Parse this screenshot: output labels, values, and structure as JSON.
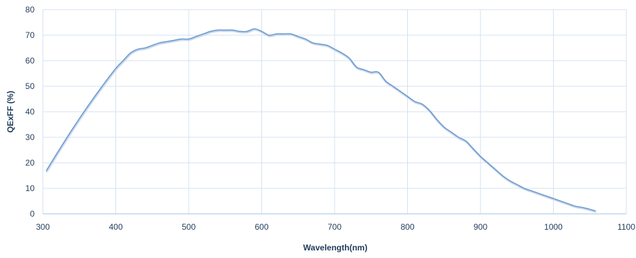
{
  "chart_data": {
    "type": "line",
    "title": "",
    "xlabel": "Wavelength(nm)",
    "ylabel": "QExFF (%)",
    "xlim": [
      300,
      1100
    ],
    "ylim": [
      0,
      80
    ],
    "x_ticks": [
      300,
      400,
      500,
      600,
      700,
      800,
      900,
      1000,
      1100
    ],
    "y_ticks": [
      0,
      10,
      20,
      30,
      40,
      50,
      60,
      70,
      80
    ],
    "x_tick_labels": [
      "300",
      "400",
      "500",
      "600",
      "700",
      "800",
      "900",
      "1000",
      "1100"
    ],
    "y_tick_labels": [
      "0",
      "10",
      "20",
      "30",
      "40",
      "50",
      "60",
      "70",
      "80"
    ],
    "grid": true,
    "legend": "none",
    "colors": {
      "line": "#6f9bd1",
      "grid": "#d4e2f1",
      "axis": "#b8cde4",
      "text": "#1f3b5a"
    },
    "series": [
      {
        "x": [
          305,
          320,
          340,
          360,
          380,
          400,
          410,
          420,
          430,
          440,
          450,
          460,
          470,
          480,
          490,
          500,
          510,
          520,
          530,
          540,
          550,
          560,
          570,
          580,
          590,
          600,
          610,
          620,
          630,
          640,
          650,
          660,
          670,
          680,
          690,
          700,
          710,
          720,
          730,
          740,
          750,
          760,
          770,
          780,
          790,
          800,
          810,
          820,
          830,
          840,
          850,
          860,
          870,
          880,
          890,
          900,
          910,
          920,
          930,
          940,
          950,
          960,
          970,
          980,
          990,
          1000,
          1010,
          1020,
          1030,
          1040,
          1050,
          1057
        ],
        "y": [
          17,
          24,
          33,
          41.5,
          49.5,
          57,
          60,
          63,
          64.5,
          65,
          66,
          67,
          67.5,
          68,
          68.5,
          68.5,
          69.5,
          70.5,
          71.5,
          72,
          72,
          72,
          71.5,
          71.5,
          72.5,
          71.5,
          70,
          70.5,
          70.5,
          70.5,
          69.5,
          68.5,
          67,
          66.5,
          66,
          64.5,
          63,
          61,
          57.5,
          56.5,
          55.5,
          55.5,
          52,
          50,
          48,
          46,
          44,
          43,
          40.5,
          37,
          34,
          32,
          30,
          28.5,
          25.5,
          22.5,
          20,
          17.5,
          15,
          13,
          11.5,
          10,
          9,
          8,
          7,
          6,
          5,
          4,
          3,
          2.5,
          1.8,
          1.2
        ]
      }
    ]
  }
}
